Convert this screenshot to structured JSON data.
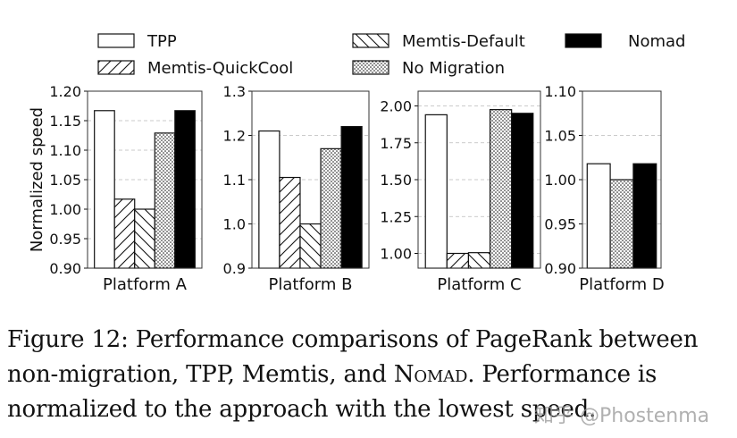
{
  "chart_data": [
    {
      "type": "bar",
      "xlabel": "Platform A",
      "ylabel": "Normalized speed",
      "ylim": [
        0.9,
        1.2
      ],
      "ticks": [
        "0.90",
        "0.95",
        "1.00",
        "1.05",
        "1.10",
        "1.15",
        "1.20"
      ],
      "grid": true,
      "series": [
        {
          "name": "TPP",
          "value": 1.167
        },
        {
          "name": "Memtis-QuickCool",
          "value": 1.017
        },
        {
          "name": "Memtis-Default",
          "value": 1.0
        },
        {
          "name": "No Migration",
          "value": 1.129
        },
        {
          "name": "Nomad",
          "value": 1.167
        }
      ]
    },
    {
      "type": "bar",
      "xlabel": "Platform B",
      "ylim": [
        0.9,
        1.3
      ],
      "ticks": [
        "0.9",
        "1.0",
        "1.1",
        "1.2",
        "1.3"
      ],
      "grid": true,
      "series": [
        {
          "name": "TPP",
          "value": 1.21
        },
        {
          "name": "Memtis-QuickCool",
          "value": 1.105
        },
        {
          "name": "Memtis-Default",
          "value": 1.0
        },
        {
          "name": "No Migration",
          "value": 1.17
        },
        {
          "name": "Nomad",
          "value": 1.22
        }
      ]
    },
    {
      "type": "bar",
      "xlabel": "Platform C",
      "ylim": [
        0.9,
        2.1
      ],
      "ticks": [
        "1.00",
        "1.25",
        "1.50",
        "1.75",
        "2.00"
      ],
      "grid": true,
      "series": [
        {
          "name": "TPP",
          "value": 1.94
        },
        {
          "name": "Memtis-QuickCool",
          "value": 1.0
        },
        {
          "name": "Memtis-Default",
          "value": 1.005
        },
        {
          "name": "No Migration",
          "value": 1.975
        },
        {
          "name": "Nomad",
          "value": 1.95
        }
      ]
    },
    {
      "type": "bar",
      "xlabel": "Platform D",
      "ylim": [
        0.9,
        1.1
      ],
      "ticks": [
        "0.90",
        "0.95",
        "1.00",
        "1.05",
        "1.10"
      ],
      "grid": true,
      "series": [
        {
          "name": "TPP",
          "value": 1.018
        },
        {
          "name": "No Migration",
          "value": 1.0
        },
        {
          "name": "Nomad",
          "value": 1.018
        }
      ]
    }
  ],
  "legend": [
    {
      "name": "TPP",
      "pattern": "white"
    },
    {
      "name": "Memtis-Default",
      "pattern": "backslash"
    },
    {
      "name": "Nomad",
      "pattern": "black"
    },
    {
      "name": "Memtis-QuickCool",
      "pattern": "slash"
    },
    {
      "name": "No Migration",
      "pattern": "dots"
    }
  ],
  "legend_placement": "top",
  "caption": {
    "line1": "Figure 12: Performance comparisons of PageRank between",
    "line2a": "non-migration, TPP, Memtis, and ",
    "line2b": "Nomad",
    "line2c": ". Performance is",
    "line3": "normalized to the approach with the lowest speed."
  },
  "watermark": "知乎 @Phostenma"
}
